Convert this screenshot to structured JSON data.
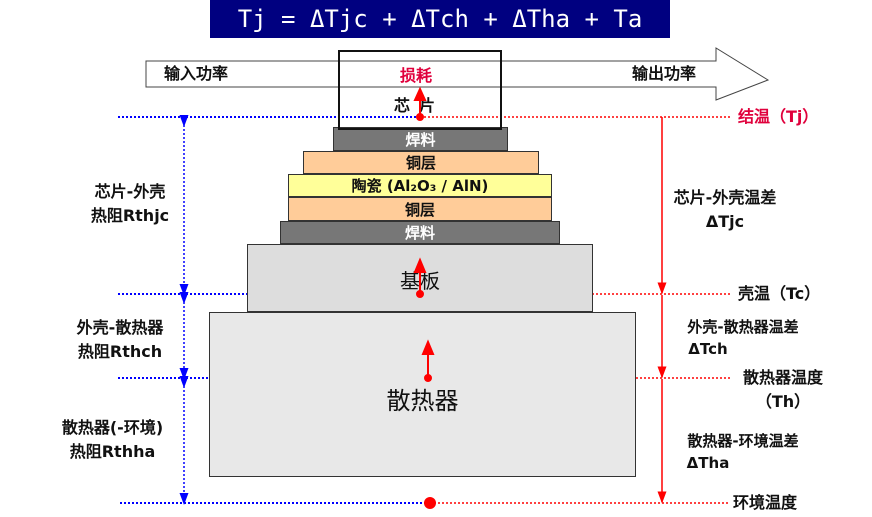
{
  "title": "Tj = ΔTjc + ΔTch + ΔTha + Ta",
  "power_arrow": {
    "input": "输入功率",
    "output": "输出功率",
    "loss": "损耗"
  },
  "chip": {
    "label": "芯片"
  },
  "layers": [
    {
      "label": "焊料",
      "color": "#777777"
    },
    {
      "label": "铜层",
      "color": "#ffcc99"
    },
    {
      "label": "陶瓷 (Al₂O₃ / AlN)",
      "color": "#ffff99"
    },
    {
      "label": "铜层",
      "color": "#ffcc99"
    },
    {
      "label": "焊料",
      "color": "#777777"
    },
    {
      "label": "基板",
      "color": "#dddddd"
    },
    {
      "label": "散热器",
      "color": "#e8e8e8"
    }
  ],
  "left_labels": [
    {
      "line1": "芯片-外壳",
      "line2": "热阻Rthjc"
    },
    {
      "line1": "外壳-散热器",
      "line2": "热阻Rthch"
    },
    {
      "line1": "散热器(-环境)",
      "line2": "热阻Rthha"
    }
  ],
  "right_labels": {
    "tj": "结温（Tj）",
    "tc": "壳温（Tc）",
    "th_1": "散热器温度",
    "th_2": "（Th）",
    "ta": "环境温度",
    "djc_1": "芯片-外壳温差",
    "djc_2": "ΔTjc",
    "dch_1": "外壳-散热器温差",
    "dch_2": "ΔTch",
    "dha_1": "散热器-环境温差",
    "dha_2": "ΔTha"
  },
  "colors": {
    "title_bg": "#000080",
    "resistance_line": "#0000ff",
    "temperature_line": "#ff0000",
    "tj_label": "#e0003c"
  }
}
